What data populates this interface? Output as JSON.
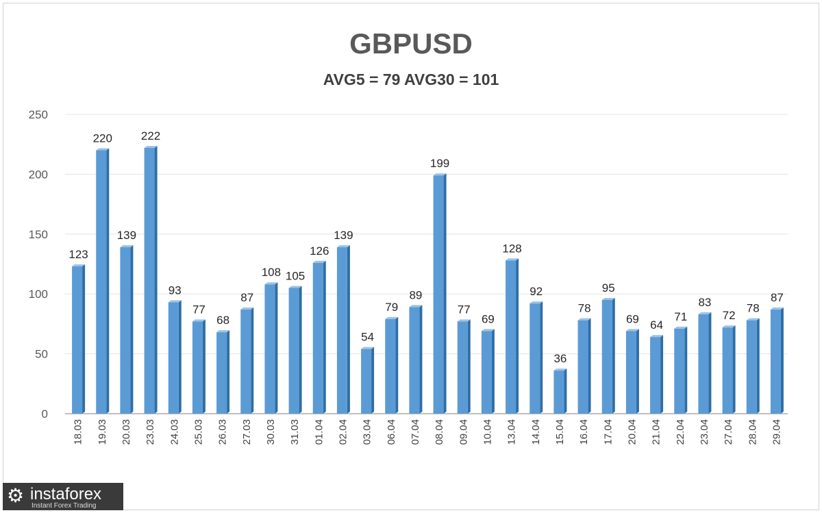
{
  "chart_data": {
    "type": "bar",
    "title": "GBPUSD",
    "subtitle": "AVG5 = 79 AVG30 = 101",
    "xlabel": "",
    "ylabel": "",
    "ylim": [
      0,
      250
    ],
    "yticks": [
      0,
      50,
      100,
      150,
      200,
      250
    ],
    "grid": true,
    "bar_color": "#5b9bd5",
    "categories": [
      "18.03",
      "19.03",
      "20.03",
      "23.03",
      "24.03",
      "25.03",
      "26.03",
      "27.03",
      "30.03",
      "31.03",
      "01.04",
      "02.04",
      "03.04",
      "06.04",
      "07.04",
      "08.04",
      "09.04",
      "10.04",
      "13.04",
      "14.04",
      "15.04",
      "16.04",
      "17.04",
      "20.04",
      "21.04",
      "22.04",
      "23.04",
      "27.04",
      "28.04",
      "29.04"
    ],
    "values": [
      123,
      220,
      139,
      222,
      93,
      77,
      68,
      87,
      108,
      105,
      126,
      139,
      54,
      79,
      89,
      199,
      77,
      69,
      128,
      92,
      36,
      78,
      95,
      69,
      64,
      71,
      83,
      72,
      78,
      87
    ]
  },
  "logo": {
    "name": "instaforex",
    "tagline": "Instant Forex Trading"
  }
}
